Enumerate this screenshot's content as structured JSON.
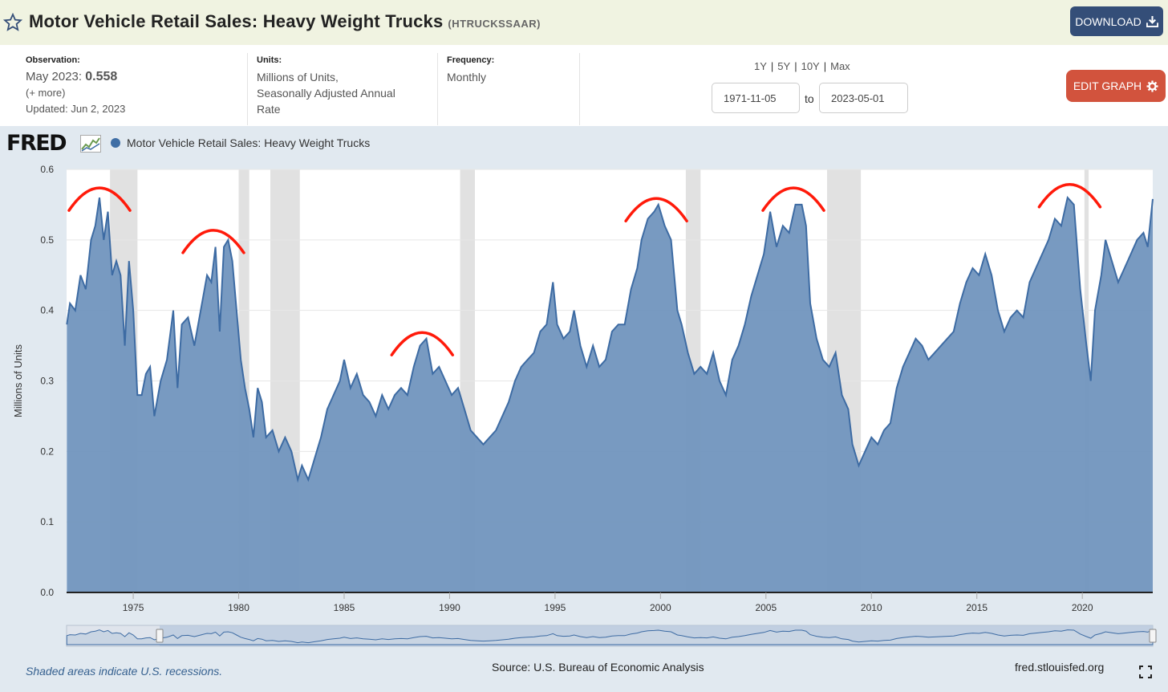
{
  "header": {
    "title": "Motor Vehicle Retail Sales: Heavy Weight Trucks",
    "series_id": "(HTRUCKSSAAR)",
    "download_label": "DOWNLOAD"
  },
  "info": {
    "observation_label": "Observation:",
    "observation_date": "May 2023:",
    "observation_value": "0.558",
    "more": "(+ more)",
    "updated": "Updated: Jun 2, 2023",
    "units_label": "Units:",
    "units_line1": "Millions of Units,",
    "units_line2": "Seasonally Adjusted Annual",
    "units_line3": "Rate",
    "frequency_label": "Frequency:",
    "frequency": "Monthly"
  },
  "range": {
    "options": [
      "1Y",
      "5Y",
      "10Y",
      "Max"
    ],
    "start": "1971-11-05",
    "to": "to",
    "end": "2023-05-01"
  },
  "edit_label": "EDIT GRAPH",
  "logo": "FRED",
  "footer": {
    "recession_note": "Shaded areas indicate U.S. recessions.",
    "source": "Source: U.S. Bureau of Economic Analysis",
    "site": "fred.stlouisfed.org"
  },
  "colors": {
    "area_fill": "#7195be",
    "line": "#3d6ba3",
    "recession": "#e1e1e1",
    "annotation": "#ff1a0a",
    "download": "#344e78",
    "edit": "#d2533d"
  },
  "chart_data": {
    "type": "area",
    "legend": "Motor Vehicle Retail Sales: Heavy Weight Trucks",
    "ylabel": "Millions of Units",
    "xlabel": "",
    "ylim": [
      0,
      0.6
    ],
    "xlim": [
      1971.84,
      2023.34
    ],
    "yticks": [
      "0.0",
      "0.1",
      "0.2",
      "0.3",
      "0.4",
      "0.5",
      "0.6"
    ],
    "xticks": [
      "1975",
      "1980",
      "1985",
      "1990",
      "1995",
      "2000",
      "2005",
      "2010",
      "2015",
      "2020"
    ],
    "recessions": [
      [
        1973.9,
        1975.2
      ],
      [
        1980.0,
        1980.5
      ],
      [
        1981.5,
        1982.9
      ],
      [
        1990.5,
        1991.2
      ],
      [
        2001.2,
        2001.9
      ],
      [
        2007.9,
        2009.5
      ],
      [
        2020.1,
        2020.3
      ]
    ],
    "series": [
      {
        "name": "Motor Vehicle Retail Sales: Heavy Weight Trucks",
        "points": [
          [
            1971.85,
            0.38
          ],
          [
            1972.0,
            0.41
          ],
          [
            1972.25,
            0.4
          ],
          [
            1972.5,
            0.45
          ],
          [
            1972.75,
            0.43
          ],
          [
            1973.0,
            0.5
          ],
          [
            1973.2,
            0.52
          ],
          [
            1973.4,
            0.56
          ],
          [
            1973.6,
            0.5
          ],
          [
            1973.8,
            0.54
          ],
          [
            1974.0,
            0.45
          ],
          [
            1974.2,
            0.47
          ],
          [
            1974.4,
            0.45
          ],
          [
            1974.6,
            0.35
          ],
          [
            1974.8,
            0.47
          ],
          [
            1975.0,
            0.4
          ],
          [
            1975.2,
            0.28
          ],
          [
            1975.4,
            0.28
          ],
          [
            1975.6,
            0.31
          ],
          [
            1975.8,
            0.32
          ],
          [
            1976.0,
            0.25
          ],
          [
            1976.3,
            0.3
          ],
          [
            1976.6,
            0.33
          ],
          [
            1976.9,
            0.4
          ],
          [
            1977.1,
            0.29
          ],
          [
            1977.3,
            0.38
          ],
          [
            1977.6,
            0.39
          ],
          [
            1977.9,
            0.35
          ],
          [
            1978.2,
            0.4
          ],
          [
            1978.5,
            0.45
          ],
          [
            1978.7,
            0.44
          ],
          [
            1978.9,
            0.49
          ],
          [
            1979.1,
            0.37
          ],
          [
            1979.3,
            0.49
          ],
          [
            1979.5,
            0.5
          ],
          [
            1979.7,
            0.47
          ],
          [
            1979.9,
            0.4
          ],
          [
            1980.1,
            0.33
          ],
          [
            1980.3,
            0.29
          ],
          [
            1980.5,
            0.26
          ],
          [
            1980.7,
            0.22
          ],
          [
            1980.9,
            0.29
          ],
          [
            1981.1,
            0.27
          ],
          [
            1981.3,
            0.22
          ],
          [
            1981.6,
            0.23
          ],
          [
            1981.9,
            0.2
          ],
          [
            1982.2,
            0.22
          ],
          [
            1982.5,
            0.2
          ],
          [
            1982.8,
            0.16
          ],
          [
            1983.0,
            0.18
          ],
          [
            1983.3,
            0.16
          ],
          [
            1983.6,
            0.19
          ],
          [
            1983.9,
            0.22
          ],
          [
            1984.2,
            0.26
          ],
          [
            1984.5,
            0.28
          ],
          [
            1984.8,
            0.3
          ],
          [
            1985.0,
            0.33
          ],
          [
            1985.3,
            0.29
          ],
          [
            1985.6,
            0.31
          ],
          [
            1985.9,
            0.28
          ],
          [
            1986.2,
            0.27
          ],
          [
            1986.5,
            0.25
          ],
          [
            1986.8,
            0.28
          ],
          [
            1987.1,
            0.26
          ],
          [
            1987.4,
            0.28
          ],
          [
            1987.7,
            0.29
          ],
          [
            1988.0,
            0.28
          ],
          [
            1988.3,
            0.32
          ],
          [
            1988.6,
            0.35
          ],
          [
            1988.9,
            0.36
          ],
          [
            1989.2,
            0.31
          ],
          [
            1989.5,
            0.32
          ],
          [
            1989.8,
            0.3
          ],
          [
            1990.1,
            0.28
          ],
          [
            1990.4,
            0.29
          ],
          [
            1990.7,
            0.26
          ],
          [
            1991.0,
            0.23
          ],
          [
            1991.3,
            0.22
          ],
          [
            1991.6,
            0.21
          ],
          [
            1991.9,
            0.22
          ],
          [
            1992.2,
            0.23
          ],
          [
            1992.5,
            0.25
          ],
          [
            1992.8,
            0.27
          ],
          [
            1993.1,
            0.3
          ],
          [
            1993.4,
            0.32
          ],
          [
            1993.7,
            0.33
          ],
          [
            1994.0,
            0.34
          ],
          [
            1994.3,
            0.37
          ],
          [
            1994.6,
            0.38
          ],
          [
            1994.9,
            0.44
          ],
          [
            1995.1,
            0.38
          ],
          [
            1995.4,
            0.36
          ],
          [
            1995.7,
            0.37
          ],
          [
            1995.9,
            0.4
          ],
          [
            1996.2,
            0.35
          ],
          [
            1996.5,
            0.32
          ],
          [
            1996.8,
            0.35
          ],
          [
            1997.1,
            0.32
          ],
          [
            1997.4,
            0.33
          ],
          [
            1997.7,
            0.37
          ],
          [
            1998.0,
            0.38
          ],
          [
            1998.3,
            0.38
          ],
          [
            1998.6,
            0.43
          ],
          [
            1998.9,
            0.46
          ],
          [
            1999.1,
            0.5
          ],
          [
            1999.4,
            0.53
          ],
          [
            1999.7,
            0.54
          ],
          [
            1999.9,
            0.55
          ],
          [
            2000.2,
            0.52
          ],
          [
            2000.5,
            0.5
          ],
          [
            2000.8,
            0.4
          ],
          [
            2001.0,
            0.38
          ],
          [
            2001.3,
            0.34
          ],
          [
            2001.6,
            0.31
          ],
          [
            2001.9,
            0.32
          ],
          [
            2002.2,
            0.31
          ],
          [
            2002.5,
            0.34
          ],
          [
            2002.8,
            0.3
          ],
          [
            2003.1,
            0.28
          ],
          [
            2003.4,
            0.33
          ],
          [
            2003.7,
            0.35
          ],
          [
            2004.0,
            0.38
          ],
          [
            2004.3,
            0.42
          ],
          [
            2004.6,
            0.45
          ],
          [
            2004.9,
            0.48
          ],
          [
            2005.2,
            0.54
          ],
          [
            2005.5,
            0.49
          ],
          [
            2005.8,
            0.52
          ],
          [
            2006.1,
            0.51
          ],
          [
            2006.4,
            0.55
          ],
          [
            2006.7,
            0.55
          ],
          [
            2006.9,
            0.52
          ],
          [
            2007.1,
            0.41
          ],
          [
            2007.4,
            0.36
          ],
          [
            2007.7,
            0.33
          ],
          [
            2008.0,
            0.32
          ],
          [
            2008.3,
            0.34
          ],
          [
            2008.6,
            0.28
          ],
          [
            2008.9,
            0.26
          ],
          [
            2009.1,
            0.21
          ],
          [
            2009.4,
            0.18
          ],
          [
            2009.7,
            0.2
          ],
          [
            2010.0,
            0.22
          ],
          [
            2010.3,
            0.21
          ],
          [
            2010.6,
            0.23
          ],
          [
            2010.9,
            0.24
          ],
          [
            2011.2,
            0.29
          ],
          [
            2011.5,
            0.32
          ],
          [
            2011.8,
            0.34
          ],
          [
            2012.1,
            0.36
          ],
          [
            2012.4,
            0.35
          ],
          [
            2012.7,
            0.33
          ],
          [
            2013.0,
            0.34
          ],
          [
            2013.3,
            0.35
          ],
          [
            2013.6,
            0.36
          ],
          [
            2013.9,
            0.37
          ],
          [
            2014.2,
            0.41
          ],
          [
            2014.5,
            0.44
          ],
          [
            2014.8,
            0.46
          ],
          [
            2015.1,
            0.45
          ],
          [
            2015.4,
            0.48
          ],
          [
            2015.7,
            0.45
          ],
          [
            2016.0,
            0.4
          ],
          [
            2016.3,
            0.37
          ],
          [
            2016.6,
            0.39
          ],
          [
            2016.9,
            0.4
          ],
          [
            2017.2,
            0.39
          ],
          [
            2017.5,
            0.44
          ],
          [
            2017.8,
            0.46
          ],
          [
            2018.1,
            0.48
          ],
          [
            2018.4,
            0.5
          ],
          [
            2018.7,
            0.53
          ],
          [
            2019.0,
            0.52
          ],
          [
            2019.3,
            0.56
          ],
          [
            2019.6,
            0.55
          ],
          [
            2019.9,
            0.43
          ],
          [
            2020.2,
            0.35
          ],
          [
            2020.4,
            0.3
          ],
          [
            2020.6,
            0.4
          ],
          [
            2020.9,
            0.45
          ],
          [
            2021.1,
            0.5
          ],
          [
            2021.4,
            0.47
          ],
          [
            2021.7,
            0.44
          ],
          [
            2022.0,
            0.46
          ],
          [
            2022.3,
            0.48
          ],
          [
            2022.6,
            0.5
          ],
          [
            2022.9,
            0.51
          ],
          [
            2023.1,
            0.49
          ],
          [
            2023.34,
            0.558
          ]
        ]
      }
    ],
    "annotations": [
      {
        "type": "peak-arc",
        "x": 1973.4,
        "y": 0.56
      },
      {
        "type": "peak-arc",
        "x": 1978.8,
        "y": 0.5
      },
      {
        "type": "peak-arc",
        "x": 1988.7,
        "y": 0.355
      },
      {
        "type": "peak-arc",
        "x": 1999.8,
        "y": 0.545
      },
      {
        "type": "peak-arc",
        "x": 2006.3,
        "y": 0.56
      },
      {
        "type": "peak-arc",
        "x": 2019.4,
        "y": 0.565
      }
    ]
  }
}
